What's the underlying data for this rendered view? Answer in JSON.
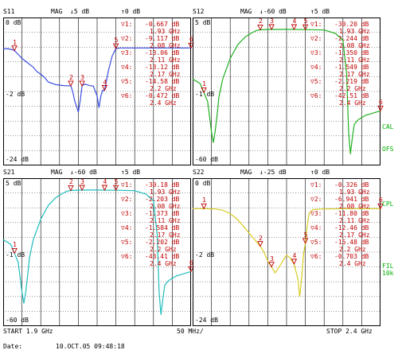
{
  "footer": {
    "start": "START 1.9 GHz",
    "div": "50 MHz/",
    "stop": "STOP 2.4 GHz",
    "date_label": "Date:",
    "date": "10.OCT.05  09:48:18"
  },
  "side_labels": {
    "cal": "CAL",
    "ofs": "OFS",
    "cpl": "CPL",
    "fil": "FIL",
    "fil2": "10k"
  },
  "colors": {
    "s11": "#3a4ee0",
    "s12": "#1fb01f",
    "s21": "#1fbcbc",
    "s22": "#d8cc20",
    "marker": "#c00000"
  },
  "chart_data": [
    {
      "type": "line",
      "name": "S11",
      "header": {
        "id": "S11",
        "mode": "MAG",
        "scale": "5 dB",
        "ref": "0 dB"
      },
      "ylabels": {
        "top": "0 dB",
        "mid": "-2 dB",
        "bottom": "-24 dB"
      },
      "x": [
        1.9,
        1.913,
        1.925,
        1.93,
        1.935,
        1.94,
        1.95,
        1.96,
        1.97,
        1.98,
        1.985,
        1.99,
        2.0,
        2.01,
        2.02,
        2.04,
        2.06,
        2.08,
        2.085,
        2.09,
        2.1,
        2.105,
        2.11,
        2.115,
        2.12,
        2.13,
        2.14,
        2.15,
        2.155,
        2.16,
        2.165,
        2.17,
        2.18,
        2.19,
        2.2,
        2.21,
        2.22,
        2.23,
        2.25,
        2.3,
        2.35,
        2.4
      ],
      "y": [
        -0.5,
        -0.6,
        -0.9,
        -1.2,
        -1.8,
        -2.5,
        -3.8,
        -4.8,
        -5.8,
        -6.8,
        -7.6,
        -8.3,
        -9.2,
        -10.2,
        -11.8,
        -12.7,
        -13.0,
        -13.1,
        -15.0,
        -18.0,
        -22.0,
        -18.0,
        -13.1,
        -12.6,
        -12.6,
        -13.0,
        -13.2,
        -16.5,
        -20.5,
        -16.5,
        -14.6,
        -14.6,
        -8.0,
        -3.0,
        -0.5,
        -0.3,
        -0.3,
        -0.3,
        -0.3,
        -0.3,
        -0.3,
        -0.3
      ],
      "ylim": [
        -40,
        10
      ],
      "markers": [
        {
          "n": "1",
          "f": 1.93,
          "v": "-0.667 dB",
          "fs": "1.93 GHz"
        },
        {
          "n": "2",
          "f": 2.08,
          "v": "-9.117 dB",
          "fs": "2.08 GHz"
        },
        {
          "n": "3",
          "f": 2.11,
          "v": "-13.06 dB",
          "fs": "2.11 GHz"
        },
        {
          "n": "4",
          "f": 2.17,
          "v": "-13.12 dB",
          "fs": "2.17 GHz"
        },
        {
          "n": "5",
          "f": 2.2,
          "v": "-14.58 dB",
          "fs": "2.2 GHz"
        },
        {
          "n": "6",
          "f": 2.4,
          "v": "-0.472 dB",
          "fs": "2.4 GHz"
        }
      ]
    },
    {
      "type": "line",
      "name": "S12",
      "header": {
        "id": "S12",
        "mode": "MAG",
        "scale": "-60 dB",
        "ref": "5 dB"
      },
      "ylabels": {
        "top": "5 dB",
        "mid": "-1 dB",
        "bottom": "-60 dB"
      },
      "x": [
        1.9,
        1.92,
        1.94,
        1.95,
        1.955,
        1.96,
        1.965,
        1.97,
        1.98,
        2.0,
        2.02,
        2.04,
        2.06,
        2.07,
        2.08,
        2.1,
        2.15,
        2.2,
        2.25,
        2.28,
        2.3,
        2.31,
        2.315,
        2.32,
        2.325,
        2.33,
        2.34,
        2.36,
        2.38,
        2.4
      ],
      "y": [
        -22,
        -24,
        -32,
        -45,
        -50,
        -45,
        -38,
        -30,
        -22,
        -13,
        -7,
        -3.5,
        -1.5,
        -0.7,
        -0.4,
        -0.25,
        -0.2,
        -0.3,
        -0.5,
        -2,
        -5,
        -20,
        -45,
        -55,
        -48,
        -42,
        -40,
        -38,
        -37,
        -36
      ],
      "ylim": [
        -60,
        5
      ],
      "markers": [
        {
          "n": "1",
          "f": 1.93,
          "v": "-30.20 dB",
          "fs": "1.93 GHz"
        },
        {
          "n": "2",
          "f": 2.08,
          "v": "-2.244 dB",
          "fs": "2.08 GHz"
        },
        {
          "n": "3",
          "f": 2.11,
          "v": "-1.350 dB",
          "fs": "2.11 GHz"
        },
        {
          "n": "4",
          "f": 2.17,
          "v": "-1.549 dB",
          "fs": "2.17 GHz"
        },
        {
          "n": "5",
          "f": 2.2,
          "v": "-2.219 dB",
          "fs": "2.2 GHz"
        },
        {
          "n": "6",
          "f": 2.4,
          "v": "-42.51 dB",
          "fs": "2.4 GHz"
        }
      ]
    },
    {
      "type": "line",
      "name": "S21",
      "header": {
        "id": "S21",
        "mode": "MAG",
        "scale": "-60 dB",
        "ref": "5 dB"
      },
      "ylabels": {
        "top": "5 dB",
        "mid": "-1 dB",
        "bottom": "-60 dB"
      },
      "x": [
        1.9,
        1.92,
        1.94,
        1.95,
        1.955,
        1.96,
        1.965,
        1.97,
        1.98,
        2.0,
        2.02,
        2.04,
        2.06,
        2.07,
        2.08,
        2.1,
        2.15,
        2.2,
        2.25,
        2.28,
        2.3,
        2.31,
        2.315,
        2.32,
        2.325,
        2.33,
        2.34,
        2.36,
        2.38,
        2.4
      ],
      "y": [
        -22,
        -24,
        -32,
        -45,
        -50,
        -45,
        -38,
        -30,
        -22,
        -13,
        -7,
        -3.5,
        -1.5,
        -0.7,
        -0.4,
        -0.25,
        -0.2,
        -0.3,
        -0.5,
        -2,
        -5,
        -20,
        -45,
        -55,
        -48,
        -42,
        -40,
        -38,
        -37,
        -36
      ],
      "ylim": [
        -60,
        5
      ],
      "markers": [
        {
          "n": "1",
          "f": 1.93,
          "v": "-30.18 dB",
          "fs": "1.93 GHz"
        },
        {
          "n": "2",
          "f": 2.08,
          "v": "-2.203 dB",
          "fs": "2.08 GHz"
        },
        {
          "n": "3",
          "f": 2.11,
          "v": "-1.373 dB",
          "fs": "2.11 GHz"
        },
        {
          "n": "4",
          "f": 2.17,
          "v": "-1.584 dB",
          "fs": "2.17 GHz"
        },
        {
          "n": "5",
          "f": 2.2,
          "v": "-2.202 dB",
          "fs": "2.2 GHz"
        },
        {
          "n": "6",
          "f": 2.4,
          "v": "-43.41 dB",
          "fs": "2.4 GHz"
        }
      ]
    },
    {
      "type": "line",
      "name": "S22",
      "header": {
        "id": "S22",
        "mode": "MAG",
        "scale": "-25 dB",
        "ref": "0 dB"
      },
      "ylabels": {
        "top": "0 dB",
        "mid": "-2 dB",
        "bottom": "-24 dB"
      },
      "x": [
        1.9,
        1.93,
        1.96,
        1.98,
        2.0,
        2.02,
        2.04,
        2.06,
        2.08,
        2.09,
        2.1,
        2.11,
        2.12,
        2.13,
        2.14,
        2.15,
        2.16,
        2.17,
        2.18,
        2.185,
        2.19,
        2.195,
        2.2,
        2.205,
        2.21,
        2.22,
        2.25,
        2.3,
        2.35,
        2.4
      ],
      "y": [
        -0.3,
        -0.3,
        -0.4,
        -0.8,
        -2,
        -4,
        -7,
        -10,
        -13,
        -15,
        -18,
        -20,
        -22,
        -20,
        -18,
        -16,
        -17,
        -19,
        -24,
        -30,
        -24,
        -16,
        -12,
        -6,
        -2,
        -0.6,
        -0.4,
        -0.3,
        -0.3,
        -0.3
      ],
      "ylim": [
        -40,
        10
      ],
      "markers": [
        {
          "n": "1",
          "f": 1.93,
          "v": "-0.326 dB",
          "fs": "1.93 GHz"
        },
        {
          "n": "2",
          "f": 2.08,
          "v": "-6.941 dB",
          "fs": "2.08 GHz"
        },
        {
          "n": "3",
          "f": 2.11,
          "v": "-11.80 dB",
          "fs": "2.11 GHz"
        },
        {
          "n": "4",
          "f": 2.17,
          "v": "-12.46 dB",
          "fs": "2.17 GHz"
        },
        {
          "n": "5",
          "f": 2.2,
          "v": "-15.48 dB",
          "fs": "2.2 GHz"
        },
        {
          "n": "6",
          "f": 2.4,
          "v": "-0.703 dB",
          "fs": "2.4 GHz"
        }
      ]
    }
  ]
}
